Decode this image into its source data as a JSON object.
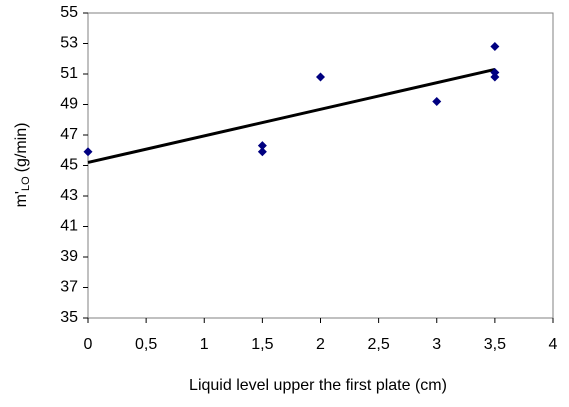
{
  "chart_data": {
    "type": "scatter",
    "x_label": "Liquid level upper the first plate (cm)",
    "y_label": {
      "main": "m'",
      "sub": "LO",
      "unit": "(g/min)"
    },
    "series": [
      {
        "name": "data",
        "color": "#000080",
        "x": [
          0,
          1.5,
          1.5,
          2,
          3,
          3.5,
          3.5,
          3.5
        ],
        "values": [
          45.9,
          46.3,
          45.9,
          50.8,
          49.2,
          52.8,
          51.1,
          50.8
        ]
      }
    ],
    "trendline": {
      "color": "#000000",
      "x": [
        0,
        3.5
      ],
      "values": [
        45.2,
        51.3
      ]
    },
    "xlim": [
      0,
      4
    ],
    "xticks": [
      0,
      {
        "value": 0.5,
        "label": "0,5"
      },
      1,
      {
        "value": 1.5,
        "label": "1,5"
      },
      2,
      {
        "value": 2.5,
        "label": "2,5"
      },
      3,
      {
        "value": 3.5,
        "label": "3,5"
      },
      4
    ],
    "ylim": [
      35,
      55
    ],
    "yticks": [
      35,
      37,
      39,
      41,
      43,
      45,
      47,
      49,
      51,
      53,
      55
    ]
  }
}
